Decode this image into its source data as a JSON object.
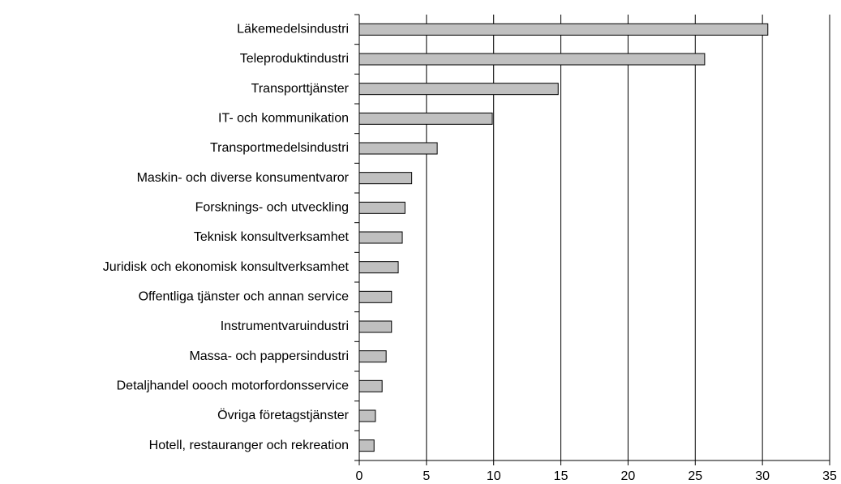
{
  "chart_data": {
    "type": "barh",
    "categories": [
      "Läkemedelsindustri",
      "Teleproduktindustri",
      "Transporttjänster",
      "IT- och kommunikation",
      "Transportmedelsindustri",
      "Maskin- och diverse konsumentvaror",
      "Forsknings- och utveckling",
      "Teknisk konsultverksamhet",
      "Juridisk och ekonomisk konsultverksamhet",
      "Offentliga tjänster och annan service",
      "Instrumentvaruindustri",
      "Massa- och pappersindustri",
      "Detaljhandel oooch motorfordonsservice",
      "Övriga företagstjänster",
      "Hotell, restauranger och rekreation"
    ],
    "values": [
      30.4,
      25.7,
      14.8,
      9.9,
      5.8,
      3.9,
      3.4,
      3.2,
      2.9,
      2.4,
      2.4,
      2.0,
      1.7,
      1.2,
      1.1
    ],
    "color": "#c0c0c0",
    "xlim": [
      0,
      35
    ],
    "xticks": [
      0,
      5,
      10,
      15,
      20,
      25,
      30,
      35
    ],
    "grid": true
  }
}
